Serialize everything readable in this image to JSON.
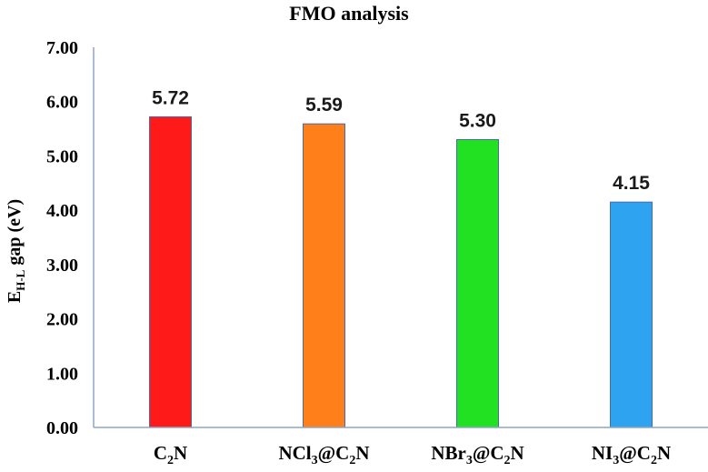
{
  "chart_data": {
    "type": "bar",
    "title": "FMO analysis",
    "ylabel_main": "E",
    "ylabel_sub": "H-L",
    "ylabel_rest": " gap (eV)",
    "ylim": [
      0,
      7
    ],
    "ytick_step": 1,
    "ytick_decimals": 2,
    "grid": false,
    "categories": [
      {
        "base": "C",
        "sub1": "2",
        "mid": "N",
        "sub2": "",
        "tail": ""
      },
      {
        "base": "NCl",
        "sub1": "3",
        "mid": "@C",
        "sub2": "2",
        "tail": "N"
      },
      {
        "base": "NBr",
        "sub1": "3",
        "mid": "@C",
        "sub2": "2",
        "tail": "N"
      },
      {
        "base": "NI",
        "sub1": "3",
        "mid": "@C",
        "sub2": "2",
        "tail": "N"
      }
    ],
    "values": [
      5.72,
      5.59,
      5.3,
      4.15
    ],
    "value_labels": [
      "5.72",
      "5.59",
      "5.30",
      "4.15"
    ],
    "colors": [
      "#ff1a1a",
      "#ff7f1a",
      "#22e022",
      "#2ea3f0"
    ],
    "axis_color": "#8ea6c6"
  }
}
